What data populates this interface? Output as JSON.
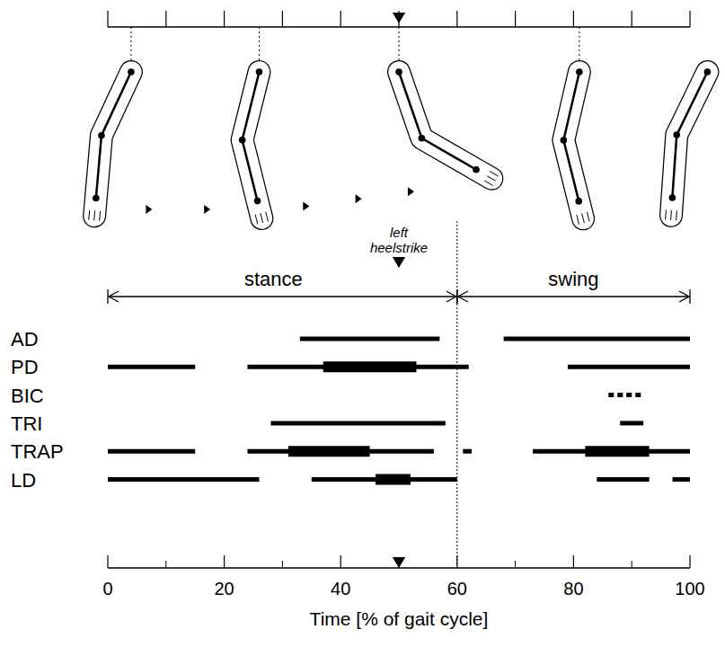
{
  "chart_data": {
    "type": "timeline",
    "orientation": "horizontal",
    "color": "#000000",
    "x_label": "Time [% of gait cycle]",
    "xlim": [
      0,
      100
    ],
    "xticks": [
      0,
      20,
      40,
      60,
      80,
      100
    ],
    "x_minor_ticks": [
      10,
      30,
      50,
      70,
      90
    ],
    "top_ticks": [
      0,
      10,
      20,
      30,
      40,
      50,
      60,
      70,
      80,
      90,
      100
    ],
    "event": {
      "label": "left heelstrike",
      "x": 50
    },
    "phases": [
      {
        "label": "stance",
        "start": 0,
        "end": 60
      },
      {
        "label": "swing",
        "start": 60,
        "end": 100
      }
    ],
    "arm_poses": [
      {
        "x": 4,
        "upper_arm_angle": -25,
        "forearm_angle": -5
      },
      {
        "x": 26,
        "upper_arm_angle": -14,
        "forearm_angle": 14
      },
      {
        "x": 50,
        "upper_arm_angle": 19,
        "forearm_angle": 60
      },
      {
        "x": 81,
        "upper_arm_angle": -13,
        "forearm_angle": 14
      },
      {
        "x": 103,
        "upper_arm_angle": -26,
        "forearm_angle": -4
      }
    ],
    "motion_arrows": [
      7,
      17,
      34,
      43,
      52
    ],
    "series": [
      {
        "name": "AD",
        "segments": [
          {
            "start": 33,
            "end": 57,
            "line_style": "solid"
          },
          {
            "start": 68,
            "end": 100,
            "line_style": "solid"
          }
        ]
      },
      {
        "name": "PD",
        "segments": [
          {
            "start": 0,
            "end": 15,
            "line_style": "solid"
          },
          {
            "start": 24,
            "end": 62,
            "line_style": "solid"
          },
          {
            "start": 37,
            "end": 53,
            "line_style": "bold"
          },
          {
            "start": 79,
            "end": 100,
            "line_style": "solid"
          }
        ]
      },
      {
        "name": "BIC",
        "segments": [
          {
            "start": 86,
            "end": 92,
            "line_style": "dotted"
          }
        ]
      },
      {
        "name": "TRI",
        "segments": [
          {
            "start": 28,
            "end": 58,
            "line_style": "solid"
          },
          {
            "start": 88,
            "end": 92,
            "line_style": "solid"
          }
        ]
      },
      {
        "name": "TRAP",
        "segments": [
          {
            "start": 0,
            "end": 15,
            "line_style": "solid"
          },
          {
            "start": 24,
            "end": 56,
            "line_style": "solid"
          },
          {
            "start": 31,
            "end": 45,
            "line_style": "bold"
          },
          {
            "start": 61,
            "end": 62.5,
            "line_style": "solid"
          },
          {
            "start": 73,
            "end": 100,
            "line_style": "solid"
          },
          {
            "start": 82,
            "end": 93,
            "line_style": "bold"
          }
        ]
      },
      {
        "name": "LD",
        "segments": [
          {
            "start": 0,
            "end": 26,
            "line_style": "solid"
          },
          {
            "start": 35,
            "end": 60,
            "line_style": "solid"
          },
          {
            "start": 46,
            "end": 52,
            "line_style": "bold"
          },
          {
            "start": 84,
            "end": 93,
            "line_style": "solid"
          },
          {
            "start": 97,
            "end": 100,
            "line_style": "solid"
          }
        ]
      }
    ]
  }
}
